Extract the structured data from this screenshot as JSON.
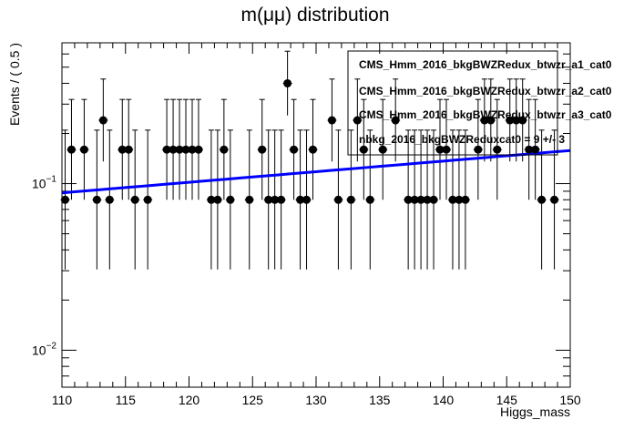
{
  "chart_data": {
    "type": "scatter",
    "title": "m(μμ) distribution",
    "xlabel": "Higgs_mass",
    "ylabel": "Events / ( 0.5 )",
    "xlim": [
      110,
      150
    ],
    "ylim": [
      0.006,
      0.7
    ],
    "yscale": "log",
    "x_ticks": [
      {
        "value": 110,
        "label": "110"
      },
      {
        "value": 115,
        "label": "115"
      },
      {
        "value": 120,
        "label": "120"
      },
      {
        "value": 125,
        "label": "125"
      },
      {
        "value": 130,
        "label": "130"
      },
      {
        "value": 135,
        "label": "135"
      },
      {
        "value": 140,
        "label": "140"
      },
      {
        "value": 145,
        "label": "145"
      },
      {
        "value": 150,
        "label": "150"
      }
    ],
    "y_ticks": [
      {
        "value": 0.01,
        "base": "10",
        "exp": "−2"
      },
      {
        "value": 0.1,
        "base": "10",
        "exp": "−1"
      }
    ],
    "series": [
      {
        "name": "data",
        "marker": "circle",
        "color": "#000000",
        "x": [
          110.25,
          110.75,
          111.75,
          112.75,
          113.25,
          113.75,
          114.75,
          115.25,
          115.75,
          116.75,
          118.25,
          118.75,
          119.25,
          119.75,
          120.25,
          120.75,
          121.75,
          122.25,
          122.75,
          123.25,
          124.75,
          125.75,
          126.25,
          126.75,
          127.25,
          127.75,
          128.25,
          128.75,
          129.25,
          129.75,
          131.25,
          131.75,
          132.75,
          133.25,
          133.75,
          134.25,
          135.25,
          136.25,
          137.25,
          137.75,
          138.25,
          138.75,
          139.25,
          139.75,
          140.25,
          140.75,
          141.25,
          141.75,
          142.75,
          143.25,
          143.75,
          144.25,
          145.25,
          145.75,
          146.25,
          146.75,
          147.25,
          147.75,
          148.75
        ],
        "y": [
          0.08,
          0.16,
          0.16,
          0.08,
          0.24,
          0.08,
          0.16,
          0.16,
          0.08,
          0.08,
          0.16,
          0.16,
          0.16,
          0.16,
          0.16,
          0.16,
          0.08,
          0.08,
          0.16,
          0.08,
          0.08,
          0.16,
          0.08,
          0.08,
          0.08,
          0.4,
          0.16,
          0.08,
          0.08,
          0.16,
          0.24,
          0.08,
          0.08,
          0.24,
          0.16,
          0.08,
          0.16,
          0.24,
          0.08,
          0.08,
          0.08,
          0.08,
          0.08,
          0.16,
          0.16,
          0.08,
          0.08,
          0.08,
          0.16,
          0.24,
          0.24,
          0.16,
          0.24,
          0.24,
          0.24,
          0.16,
          0.16,
          0.08,
          0.08
        ]
      },
      {
        "name": "fit",
        "type": "line",
        "color": "#0000ff",
        "x": [
          110,
          150
        ],
        "y": [
          0.088,
          0.158
        ]
      }
    ],
    "legend": {
      "position": "top-right",
      "entries": [
        "CMS_Hmm_2016_bkgBWZRedux_btwzr_a1_cat0",
        "CMS_Hmm_2016_bkgBWZRedux_btwzr_a2_cat0",
        "CMS_Hmm_2016_bkgBWZRedux_btwzr_a3_cat0",
        "nbkg_2016_bkgBWZReduxcat0 = 9 +/- 3"
      ]
    }
  }
}
